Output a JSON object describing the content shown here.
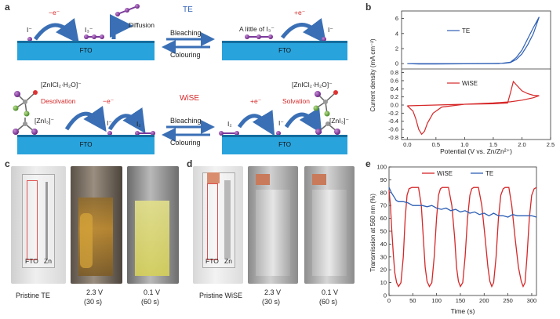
{
  "panel_a": {
    "letter": "a",
    "te_title": "TE",
    "wise_title": "WiSE",
    "bleaching": "Bleaching",
    "colouring": "Colouring",
    "fto": "FTO",
    "electron_loss": "−e⁻",
    "electron_gain": "+e⁻",
    "iodide": "I⁻",
    "triiodide": "I₃⁻",
    "iodine": "I₂",
    "diffusion": "Diffusion",
    "little_i3": "A little of I₃⁻",
    "zncl_complex": "[ZnICl₂·H₂O]⁻",
    "zni3": "[ZnI₃]⁻",
    "desolvation": "Desolvation",
    "solvation": "Solvation"
  },
  "panel_b": {
    "letter": "b",
    "ylabel": "Current density (mA cm⁻²)",
    "xlabel": "Potential (V vs. Zn/Zn²⁺)"
  },
  "panel_c": {
    "letter": "c",
    "fto": "FTO",
    "zn": "Zn",
    "captions": [
      "Pristine TE",
      "2.3 V\n(30 s)",
      "0.1 V\n(60 s)"
    ],
    "cap1": "Pristine TE",
    "cap2a": "2.3 V",
    "cap2b": "(30 s)",
    "cap3a": "0.1 V",
    "cap3b": "(60 s)"
  },
  "panel_d": {
    "letter": "d",
    "fto": "FTO",
    "zn": "Zn",
    "cap1": "Pristine WiSE",
    "cap2a": "2.3 V",
    "cap2b": "(30 s)",
    "cap3a": "0.1 V",
    "cap3b": "(60 s)"
  },
  "panel_e": {
    "letter": "e",
    "ylabel": "Transmission at 560 nm (%)",
    "xlabel": "Time (s)"
  },
  "chart_data": [
    {
      "type": "line",
      "panel": "b-top",
      "xlim": [
        -0.1,
        2.5
      ],
      "ylim": [
        -0.5,
        7
      ],
      "yticks": [
        0,
        2,
        4,
        6
      ],
      "series": [
        {
          "name": "TE",
          "color": "#2e5fb5",
          "x": [
            0.0,
            0.5,
            1.0,
            1.5,
            1.7,
            1.8,
            1.9,
            2.0,
            2.1,
            2.2,
            2.3,
            2.2,
            2.1,
            2.0,
            1.9,
            1.8,
            1.6,
            1.0,
            0.5,
            0.2,
            0.0
          ],
          "y": [
            0.0,
            0.0,
            0.0,
            0.02,
            0.05,
            0.15,
            0.55,
            1.3,
            2.5,
            4.0,
            6.2,
            4.8,
            3.3,
            1.8,
            0.8,
            0.2,
            0.0,
            -0.02,
            -0.05,
            -0.05,
            0.0
          ]
        }
      ]
    },
    {
      "type": "line",
      "panel": "b-bottom",
      "xlim": [
        -0.1,
        2.5
      ],
      "xticks": [
        0.0,
        0.5,
        1.0,
        1.5,
        2.0,
        2.5
      ],
      "ylim": [
        -0.85,
        0.85
      ],
      "yticks": [
        -0.8,
        -0.6,
        -0.4,
        -0.2,
        0.0,
        0.2,
        0.4,
        0.6,
        0.8
      ],
      "series": [
        {
          "name": "WiSE",
          "color": "#d62728",
          "x": [
            0.0,
            0.5,
            1.0,
            1.5,
            1.75,
            1.8,
            1.85,
            1.9,
            2.0,
            2.1,
            2.2,
            2.3,
            2.2,
            2.0,
            1.8,
            1.5,
            1.0,
            0.6,
            0.45,
            0.35,
            0.3,
            0.25,
            0.2,
            0.15,
            0.1,
            0.0
          ],
          "y": [
            -0.02,
            0.0,
            0.02,
            0.03,
            0.05,
            0.3,
            0.58,
            0.5,
            0.35,
            0.28,
            0.24,
            0.23,
            0.18,
            0.12,
            0.08,
            0.05,
            0.02,
            -0.05,
            -0.2,
            -0.45,
            -0.65,
            -0.72,
            -0.6,
            -0.35,
            -0.15,
            -0.02
          ]
        }
      ]
    },
    {
      "type": "line",
      "panel": "e",
      "xlim": [
        0,
        310
      ],
      "xticks": [
        0,
        50,
        100,
        150,
        200,
        250,
        300
      ],
      "ylim": [
        0,
        100
      ],
      "yticks": [
        0,
        10,
        20,
        30,
        40,
        50,
        60,
        70,
        80,
        90,
        100
      ],
      "legend": "top",
      "series": [
        {
          "name": "WiSE",
          "color": "#d62728",
          "x": [
            0,
            3,
            6,
            9,
            12,
            16,
            20,
            25,
            30,
            34,
            38,
            42,
            48,
            55,
            62,
            68,
            72,
            76,
            80,
            85,
            90,
            95,
            100,
            104,
            108,
            112,
            118,
            125,
            132,
            138,
            142,
            146,
            150,
            155,
            160,
            165,
            170,
            174,
            178,
            182,
            188,
            195,
            202,
            208,
            212,
            216,
            220,
            225,
            230,
            235,
            240,
            244,
            248,
            252,
            258,
            265,
            272,
            278,
            282,
            286,
            290,
            295,
            300,
            305,
            310
          ],
          "y": [
            82,
            70,
            50,
            32,
            18,
            10,
            7,
            10,
            30,
            60,
            78,
            83,
            84,
            84,
            84,
            70,
            45,
            22,
            11,
            7,
            10,
            30,
            60,
            78,
            83,
            84,
            84,
            84,
            70,
            45,
            22,
            11,
            7,
            10,
            30,
            60,
            78,
            83,
            84,
            84,
            84,
            70,
            45,
            22,
            11,
            7,
            10,
            30,
            60,
            78,
            83,
            84,
            84,
            84,
            70,
            45,
            22,
            11,
            7,
            10,
            30,
            60,
            78,
            83,
            84
          ]
        },
        {
          "name": "TE",
          "color": "#2e5fb5",
          "x": [
            0,
            5,
            10,
            15,
            20,
            30,
            40,
            50,
            60,
            70,
            80,
            90,
            100,
            110,
            120,
            130,
            140,
            150,
            160,
            170,
            180,
            190,
            200,
            210,
            220,
            230,
            240,
            250,
            260,
            270,
            280,
            290,
            300,
            310
          ],
          "y": [
            84,
            80,
            77,
            74,
            73,
            73,
            72,
            70,
            70,
            70,
            69,
            70,
            68,
            67,
            68,
            66,
            67,
            65,
            66,
            64,
            65,
            63,
            64,
            62,
            64,
            62,
            62,
            61,
            63,
            62,
            62,
            62,
            62,
            61
          ]
        }
      ]
    }
  ]
}
